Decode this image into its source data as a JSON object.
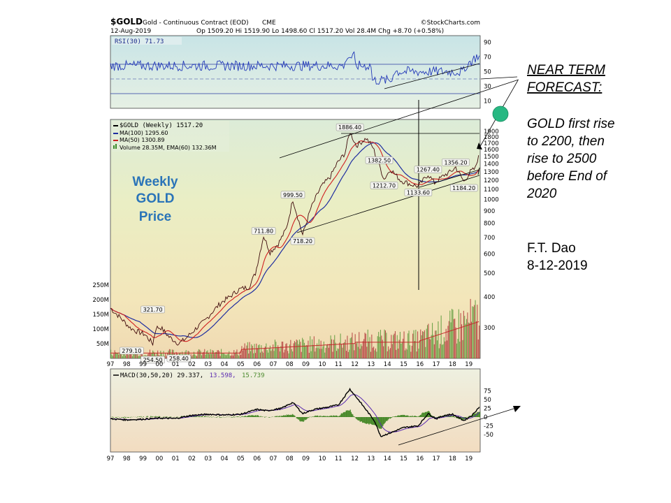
{
  "header": {
    "symbol": "$GOLD",
    "name": "Gold - Continuous Contract (EOD)",
    "exchange": "CME",
    "date": "12-Aug-2019",
    "quote": "Op 1509.20   Hi 1519.90   Lo 1498.60   Cl 1517.20   Vol 28.4M   Chg +8.70 (+0.58%)",
    "brand": "©StockCharts.com"
  },
  "rsi": {
    "label": "RSI(30) 71.73",
    "ticks": [
      "90",
      "70",
      "50",
      "30",
      "10"
    ],
    "tick_values": [
      90,
      70,
      50,
      30,
      10
    ]
  },
  "legend": {
    "price": "$GOLD (Weekly) 1517.20",
    "ma100": "MA(100) 1295.60",
    "ma50": "MA(50) 1300.89",
    "volume": "Volume 28.35M, EMA(60) 132.36M"
  },
  "overlay": {
    "weekly_line1": "Weekly",
    "weekly_line2": "GOLD",
    "weekly_line3": "Price",
    "forecast_title1": "NEAR TERM",
    "forecast_title2": "FORECAST:",
    "forecast_body": [
      "GOLD first rise",
      "to 2200, then",
      "rise to 2500",
      "before End of",
      "2020"
    ],
    "author": "F.T. Dao",
    "author_date": "8-12-2019"
  },
  "price_ticks": [
    "1900",
    "1800",
    "1700",
    "1600",
    "1500",
    "1400",
    "1300",
    "1200",
    "1100",
    "1000",
    "900",
    "800",
    "700",
    "600",
    "500",
    "400",
    "300"
  ],
  "volume_ticks": [
    "250M",
    "200M",
    "150M",
    "100M",
    "50M"
  ],
  "x_ticks": [
    "97",
    "98",
    "99",
    "00",
    "01",
    "02",
    "03",
    "04",
    "05",
    "06",
    "07",
    "08",
    "09",
    "10",
    "11",
    "12",
    "13",
    "14",
    "15",
    "16",
    "17",
    "18",
    "19"
  ],
  "macd": {
    "label_main": "MACD(30,50,20) 29.337,",
    "label_signal": "13.598,",
    "label_hist": "15.739",
    "ticks": [
      "75",
      "50",
      "25",
      "0",
      "-25",
      "-50"
    ],
    "tick_values": [
      75,
      50,
      25,
      0,
      -25,
      -50
    ]
  },
  "colors": {
    "price": "#000000",
    "ma100": "#1f2ea0",
    "ma50": "#c81e1e",
    "volume": "#3a8c2a",
    "macd_signal": "#5a2ab0",
    "macd_hist": "#4a8a2c",
    "marker": "#27b882",
    "weekly_text": "#2a74b8"
  },
  "chart_data": {
    "type": "line",
    "title": "$GOLD Gold - Continuous Contract (EOD) CME",
    "scale": "log",
    "x": [
      "97",
      "98",
      "99",
      "00",
      "01",
      "02",
      "03",
      "04",
      "05",
      "06",
      "07",
      "08",
      "09",
      "10",
      "11",
      "12",
      "13",
      "14",
      "15",
      "16",
      "17",
      "18",
      "19"
    ],
    "series": [
      {
        "name": "$GOLD (Weekly)",
        "points": [
          [
            1997.0,
            360
          ],
          [
            1997.6,
            330
          ],
          [
            1998.2,
            300
          ],
          [
            1998.6,
            290
          ],
          [
            1999.1,
            282
          ],
          [
            1999.6,
            258
          ],
          [
            1999.8,
            300
          ],
          [
            2000.1,
            300
          ],
          [
            2000.6,
            275
          ],
          [
            2001.2,
            258
          ],
          [
            2001.6,
            270
          ],
          [
            2002.3,
            300
          ],
          [
            2002.8,
            320
          ],
          [
            2003.2,
            345
          ],
          [
            2003.8,
            380
          ],
          [
            2004.3,
            400
          ],
          [
            2004.9,
            430
          ],
          [
            2005.5,
            440
          ],
          [
            2005.9,
            500
          ],
          [
            2006.4,
            711.8
          ],
          [
            2006.8,
            610
          ],
          [
            2007.3,
            660
          ],
          [
            2007.8,
            760
          ],
          [
            2008.2,
            999.5
          ],
          [
            2008.8,
            718.2
          ],
          [
            2009.3,
            920
          ],
          [
            2009.9,
            1120
          ],
          [
            2010.5,
            1240
          ],
          [
            2010.9,
            1400
          ],
          [
            2011.4,
            1550
          ],
          [
            2011.7,
            1886.4
          ],
          [
            2012.1,
            1660
          ],
          [
            2012.7,
            1780
          ],
          [
            2013.1,
            1640
          ],
          [
            2013.5,
            1382.5
          ],
          [
            2013.8,
            1212.7
          ],
          [
            2014.2,
            1330
          ],
          [
            2014.8,
            1200
          ],
          [
            2015.5,
            1150
          ],
          [
            2015.9,
            1133.6
          ],
          [
            2016.5,
            1267.4
          ],
          [
            2016.9,
            1170
          ],
          [
            2017.5,
            1260
          ],
          [
            2017.9,
            1300
          ],
          [
            2018.2,
            1356.2
          ],
          [
            2018.7,
            1184.2
          ],
          [
            2019.1,
            1300
          ],
          [
            2019.4,
            1340
          ],
          [
            2019.6,
            1517.2
          ]
        ]
      },
      {
        "name": "MA(100)",
        "value": 1295.6
      },
      {
        "name": "MA(50)",
        "value": 1300.89
      }
    ],
    "annotations": [
      "321.70",
      "279.10",
      "254.50",
      "258.40",
      "711.80",
      "999.50",
      "718.20",
      "1886.40",
      "1382.50",
      "1212.70",
      "1267.40",
      "1133.60",
      "1356.20",
      "1184.20"
    ],
    "rsi_last": 71.73,
    "macd_last": [
      29.337,
      13.598,
      15.739
    ],
    "ylim": [
      250,
      2000
    ]
  }
}
